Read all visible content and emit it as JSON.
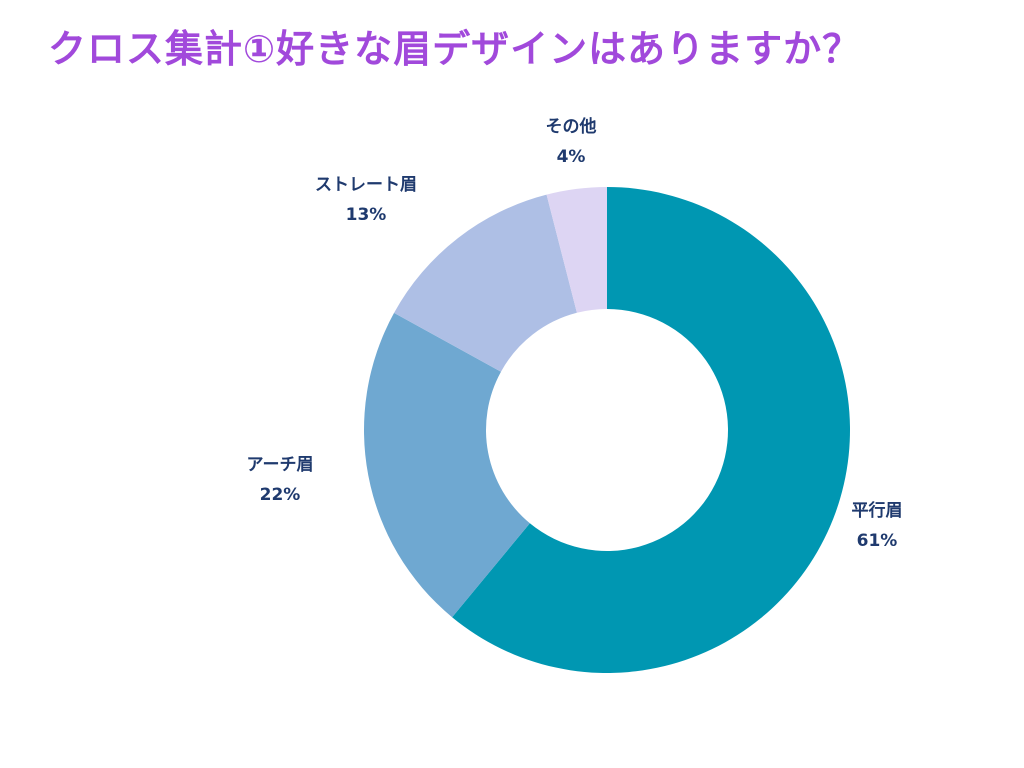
{
  "title": "クロス集計①好きな眉デザインはありますか？",
  "colors": {
    "title": "#a149db",
    "label": "#1f3a6e",
    "background": "#ffffff"
  },
  "chart_data": {
    "type": "pie",
    "donut": true,
    "title": "",
    "slices": [
      {
        "name": "平行眉",
        "value": 61,
        "label": "61%",
        "color": "#0097b2"
      },
      {
        "name": "アーチ眉",
        "value": 22,
        "label": "22%",
        "color": "#6fa8d1"
      },
      {
        "name": "ストレート眉",
        "value": 13,
        "label": "13%",
        "color": "#aebfe5"
      },
      {
        "name": "その他",
        "value": 4,
        "label": "4%",
        "color": "#ddd5f3"
      }
    ],
    "start": "12 o'clock",
    "direction": "clockwise",
    "labels": "outside, name above percentage"
  }
}
